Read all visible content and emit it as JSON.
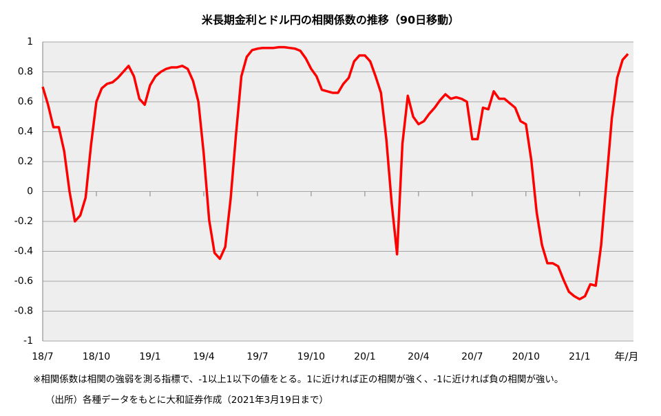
{
  "chart_data": {
    "type": "line",
    "title": "米長期金利とドル円の相関係数の推移（90日移動）",
    "categories": [
      "18/7",
      null,
      null,
      null,
      null,
      null,
      null,
      null,
      null,
      null,
      "18/10",
      null,
      null,
      null,
      null,
      null,
      null,
      null,
      null,
      null,
      "19/1",
      null,
      null,
      null,
      null,
      null,
      null,
      null,
      null,
      null,
      "19/4",
      null,
      null,
      null,
      null,
      null,
      null,
      null,
      null,
      null,
      "19/7",
      null,
      null,
      null,
      null,
      null,
      null,
      null,
      null,
      null,
      "19/10",
      null,
      null,
      null,
      null,
      null,
      null,
      null,
      null,
      null,
      "20/1",
      null,
      null,
      null,
      null,
      null,
      null,
      null,
      null,
      null,
      "20/4",
      null,
      null,
      null,
      null,
      null,
      null,
      null,
      null,
      null,
      "20/7",
      null,
      null,
      null,
      null,
      null,
      null,
      null,
      null,
      null,
      "20/10",
      null,
      null,
      null,
      null,
      null,
      null,
      null,
      null,
      null,
      "21/1",
      null,
      null,
      null,
      null,
      null,
      null,
      null,
      null,
      null
    ],
    "values": [
      0.7,
      0.58,
      0.43,
      0.43,
      0.27,
      0.0,
      -0.2,
      -0.16,
      -0.04,
      0.31,
      0.6,
      0.69,
      0.72,
      0.73,
      0.76,
      0.8,
      0.84,
      0.77,
      0.62,
      0.58,
      0.71,
      0.77,
      0.8,
      0.82,
      0.83,
      0.83,
      0.84,
      0.82,
      0.74,
      0.6,
      0.25,
      -0.19,
      -0.41,
      -0.45,
      -0.37,
      -0.05,
      0.38,
      0.77,
      0.9,
      0.945,
      0.955,
      0.96,
      0.96,
      0.96,
      0.965,
      0.965,
      0.96,
      0.955,
      0.94,
      0.89,
      0.82,
      0.77,
      0.68,
      0.67,
      0.66,
      0.66,
      0.72,
      0.76,
      0.87,
      0.91,
      0.91,
      0.87,
      0.77,
      0.66,
      0.35,
      -0.08,
      -0.42,
      0.32,
      0.64,
      0.5,
      0.45,
      0.47,
      0.52,
      0.56,
      0.61,
      0.65,
      0.62,
      0.63,
      0.62,
      0.6,
      0.35,
      0.35,
      0.56,
      0.55,
      0.67,
      0.62,
      0.62,
      0.59,
      0.56,
      0.47,
      0.45,
      0.21,
      -0.14,
      -0.36,
      -0.48,
      -0.48,
      -0.5,
      -0.59,
      -0.67,
      -0.7,
      -0.72,
      -0.7,
      -0.62,
      -0.63,
      -0.36,
      0.07,
      0.49,
      0.76,
      0.88,
      0.92
    ],
    "color": "#ff0000",
    "ylim": [
      -1,
      1
    ],
    "yticks": [
      -1,
      -0.8,
      -0.6,
      -0.4,
      -0.2,
      0,
      0.2,
      0.4,
      0.6,
      0.8,
      1
    ],
    "grid": true,
    "x_label": "年/月",
    "note": "※相関係数は相関の強弱を測る指標で、-1以上1以下の値をとる。1に近ければ正の相関が強く、-1に近ければ負の相関が強い。",
    "source": "（出所）各種データをもとに大和証券作成（2021年3月19日まで）"
  }
}
